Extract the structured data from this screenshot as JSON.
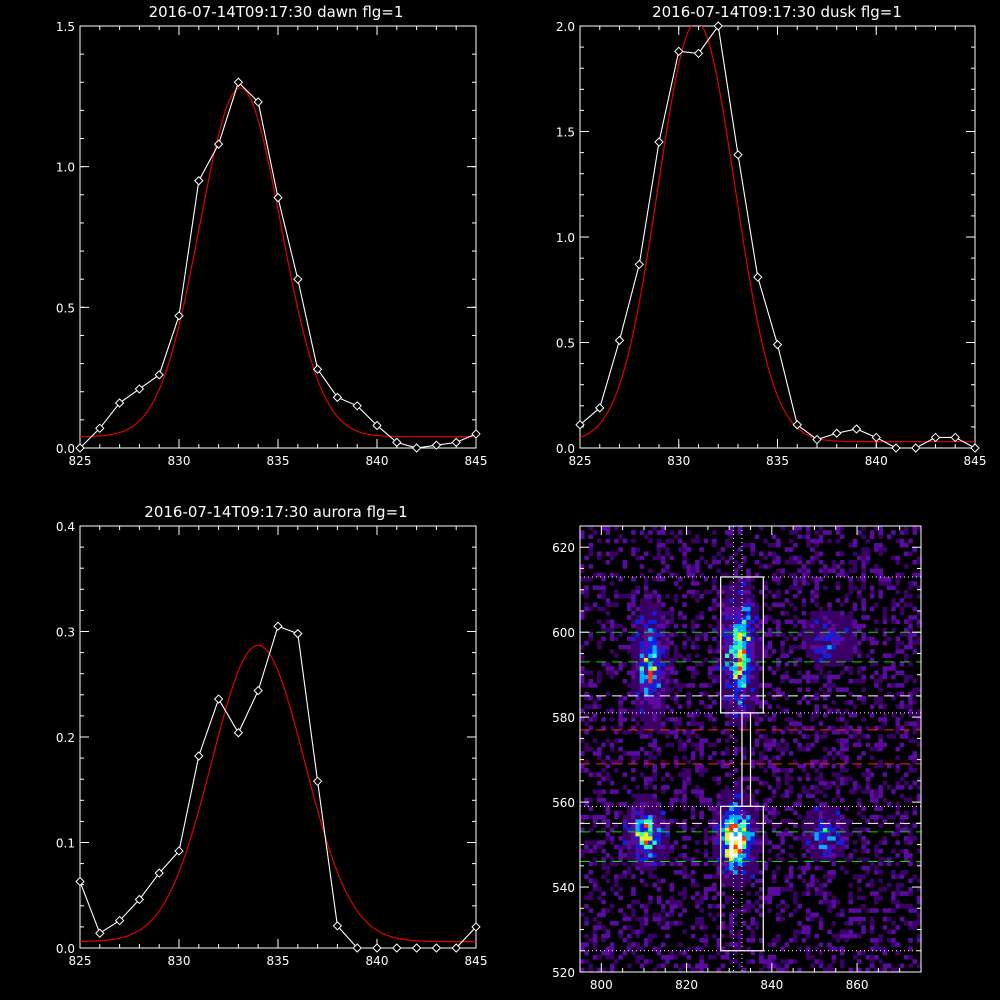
{
  "chart_data": [
    {
      "type": "line",
      "title": "2016-07-14T09:17:30 dawn flg=1",
      "xlim": [
        825,
        845
      ],
      "ylim": [
        0,
        1.5
      ],
      "xticks": [
        825,
        830,
        835,
        840,
        845
      ],
      "yticks": [
        0.0,
        0.5,
        1.0,
        1.5
      ],
      "xtick_labels": [
        "825",
        "830",
        "835",
        "840",
        "845"
      ],
      "ytick_labels": [
        "0.0",
        "0.5",
        "1.0",
        "1.5"
      ],
      "series": [
        {
          "style": "white-diamond",
          "color": "#ffffff",
          "x": [
            825,
            826,
            827,
            828,
            829,
            830,
            831,
            832,
            833,
            834,
            835,
            836,
            837,
            838,
            839,
            840,
            841,
            842,
            843,
            844,
            845
          ],
          "y": [
            0.0,
            0.07,
            0.16,
            0.21,
            0.26,
            0.47,
            0.95,
            1.08,
            1.3,
            1.23,
            0.89,
            0.6,
            0.28,
            0.18,
            0.15,
            0.08,
            0.02,
            0.0,
            0.01,
            0.02,
            0.05
          ]
        },
        {
          "style": "red-fit",
          "color": "#e00000",
          "fit": {
            "amp": 1.24,
            "center": 833.1,
            "sigma": 2.05,
            "base": 0.04
          }
        }
      ]
    },
    {
      "type": "line",
      "title": "2016-07-14T09:17:30 dusk flg=1",
      "xlim": [
        825,
        845
      ],
      "ylim": [
        0,
        2.0
      ],
      "xticks": [
        825,
        830,
        835,
        840,
        845
      ],
      "yticks": [
        0.0,
        0.5,
        1.0,
        1.5,
        2.0
      ],
      "xtick_labels": [
        "825",
        "830",
        "835",
        "840",
        "845"
      ],
      "ytick_labels": [
        "0.0",
        "0.5",
        "1.0",
        "1.5",
        "2.0"
      ],
      "series": [
        {
          "style": "white-diamond",
          "color": "#ffffff",
          "x": [
            825,
            826,
            827,
            828,
            829,
            830,
            831,
            832,
            833,
            834,
            835,
            836,
            837,
            838,
            839,
            840,
            841,
            842,
            843,
            844,
            845
          ],
          "y": [
            0.11,
            0.19,
            0.51,
            0.87,
            1.45,
            1.88,
            1.87,
            2.0,
            1.39,
            0.81,
            0.49,
            0.11,
            0.04,
            0.07,
            0.09,
            0.05,
            0.0,
            0.0,
            0.05,
            0.05,
            0.0
          ]
        },
        {
          "style": "red-fit",
          "color": "#e00000",
          "fit": {
            "amp": 1.99,
            "center": 830.9,
            "sigma": 1.95,
            "base": 0.03
          }
        }
      ]
    },
    {
      "type": "line",
      "title": "2016-07-14T09:17:30 aurora flg=1",
      "xlim": [
        825,
        845
      ],
      "ylim": [
        0,
        0.4
      ],
      "xticks": [
        825,
        830,
        835,
        840,
        845
      ],
      "yticks": [
        0.0,
        0.1,
        0.2,
        0.3,
        0.4
      ],
      "xtick_labels": [
        "825",
        "830",
        "835",
        "840",
        "845"
      ],
      "ytick_labels": [
        "0.0",
        "0.1",
        "0.2",
        "0.3",
        "0.4"
      ],
      "series": [
        {
          "style": "white-diamond",
          "color": "#ffffff",
          "x": [
            825,
            826,
            827,
            828,
            829,
            830,
            831,
            832,
            833,
            834,
            835,
            836,
            837,
            838,
            839,
            840,
            841,
            842,
            843,
            844,
            845
          ],
          "y": [
            0.063,
            0.014,
            0.026,
            0.046,
            0.071,
            0.092,
            0.182,
            0.236,
            0.204,
            0.244,
            0.305,
            0.298,
            0.158,
            0.021,
            0.0,
            0.0,
            0.0,
            0.0,
            0.0,
            0.0,
            0.02
          ]
        },
        {
          "style": "red-fit",
          "color": "#e00000",
          "fit": {
            "amp": 0.281,
            "center": 834.0,
            "sigma": 2.35,
            "base": 0.006
          }
        }
      ]
    },
    {
      "type": "heatmap",
      "xlim": [
        795,
        875
      ],
      "ylim": [
        520,
        625
      ],
      "xticks": [
        800,
        820,
        840,
        860
      ],
      "yticks": [
        520,
        540,
        560,
        580,
        600,
        620
      ],
      "xtick_labels": [
        "800",
        "820",
        "840",
        "860"
      ],
      "ytick_labels": [
        "520",
        "540",
        "560",
        "580",
        "600",
        "620"
      ],
      "colormap": [
        "#000000",
        "#3a0066",
        "#5a0a9e",
        "#1020e0",
        "#00b0ff",
        "#30ffb0",
        "#f0f020",
        "#ff3000",
        "#ffffff"
      ],
      "blobs": [
        {
          "x": 811,
          "y": 592,
          "sx": 1.8,
          "sy": 6.5,
          "amp": 0.55
        },
        {
          "x": 832,
          "y": 595,
          "sx": 2.0,
          "sy": 7.0,
          "amp": 0.7
        },
        {
          "x": 831,
          "y": 551,
          "sx": 2.2,
          "sy": 4.5,
          "amp": 1.0
        },
        {
          "x": 810,
          "y": 552,
          "sx": 2.2,
          "sy": 3.5,
          "amp": 0.65
        },
        {
          "x": 852,
          "y": 552,
          "sx": 2.5,
          "sy": 3.0,
          "amp": 0.35
        },
        {
          "x": 853,
          "y": 598,
          "sx": 3.0,
          "sy": 3.0,
          "amp": 0.25
        }
      ],
      "boxes": [
        {
          "x0": 828,
          "x1": 838,
          "y0": 581,
          "y1": 613
        },
        {
          "x0": 828,
          "x1": 838,
          "y0": 525,
          "y1": 559
        },
        {
          "x0": 833,
          "x1": 835,
          "y0": 559,
          "y1": 581
        }
      ],
      "hlines": [
        {
          "y": 613,
          "color": "#ffffff",
          "style": "dotted"
        },
        {
          "y": 600,
          "color": "#00e000",
          "style": "dashed"
        },
        {
          "y": 593,
          "color": "#00e000",
          "style": "dashed"
        },
        {
          "y": 585,
          "color": "#ffffff",
          "style": "dashed"
        },
        {
          "y": 581,
          "color": "#ffffff",
          "style": "dotted"
        },
        {
          "y": 577,
          "color": "#ff2020",
          "style": "dashed"
        },
        {
          "y": 569,
          "color": "#ff2020",
          "style": "dashed"
        },
        {
          "y": 559,
          "color": "#ffffff",
          "style": "dotted"
        },
        {
          "y": 555,
          "color": "#ffffff",
          "style": "dashed"
        },
        {
          "y": 553,
          "color": "#00e000",
          "style": "dashed"
        },
        {
          "y": 546,
          "color": "#00e000",
          "style": "dashed"
        },
        {
          "y": 525,
          "color": "#ffffff",
          "style": "dotted"
        }
      ],
      "vlines": [
        {
          "x": 831,
          "color": "#ffffff",
          "style": "dotted"
        },
        {
          "x": 833,
          "color": "#ffffff",
          "style": "dotted"
        }
      ]
    }
  ]
}
